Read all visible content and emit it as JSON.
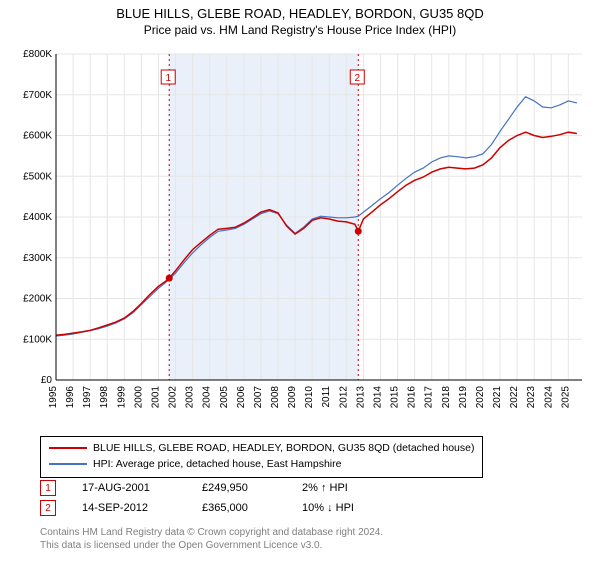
{
  "title": "BLUE HILLS, GLEBE ROAD, HEADLEY, BORDON, GU35 8QD",
  "subtitle": "Price paid vs. HM Land Registry's House Price Index (HPI)",
  "chart": {
    "type": "line",
    "background_color": "#ffffff",
    "plot_border_color": "#000000",
    "grid_color": "#e6e6e6",
    "highlight_band_color": "#eaf0fa",
    "ylim": [
      0,
      800000
    ],
    "ytick_step": 100000,
    "yticklabels": [
      "£0",
      "£100K",
      "£200K",
      "£300K",
      "£400K",
      "£500K",
      "£600K",
      "£700K",
      "£800K"
    ],
    "xlim": [
      1995,
      2025.8
    ],
    "xticks": [
      1995,
      1996,
      1997,
      1998,
      1999,
      2000,
      2001,
      2002,
      2003,
      2004,
      2005,
      2006,
      2007,
      2008,
      2009,
      2010,
      2011,
      2012,
      2013,
      2014,
      2015,
      2016,
      2017,
      2018,
      2019,
      2020,
      2021,
      2022,
      2023,
      2024,
      2025
    ],
    "highlight_band": [
      2001.6,
      2012.7
    ],
    "series": [
      {
        "name": "BLUE HILLS, GLEBE ROAD, HEADLEY, BORDON, GU35 8QD (detached house)",
        "color": "#cc0000",
        "line_width": 1.5,
        "points": [
          [
            1995,
            110000
          ],
          [
            1995.5,
            112000
          ],
          [
            1996,
            115000
          ],
          [
            1996.5,
            118000
          ],
          [
            1997,
            122000
          ],
          [
            1997.5,
            128000
          ],
          [
            1998,
            135000
          ],
          [
            1998.5,
            142000
          ],
          [
            1999,
            152000
          ],
          [
            1999.5,
            168000
          ],
          [
            2000,
            188000
          ],
          [
            2000.5,
            210000
          ],
          [
            2001,
            230000
          ],
          [
            2001.5,
            245000
          ],
          [
            2001.63,
            249950
          ],
          [
            2002,
            268000
          ],
          [
            2002.5,
            295000
          ],
          [
            2003,
            320000
          ],
          [
            2003.5,
            338000
          ],
          [
            2004,
            355000
          ],
          [
            2004.5,
            370000
          ],
          [
            2005,
            372000
          ],
          [
            2005.5,
            375000
          ],
          [
            2006,
            385000
          ],
          [
            2006.5,
            398000
          ],
          [
            2007,
            412000
          ],
          [
            2007.5,
            418000
          ],
          [
            2008,
            410000
          ],
          [
            2008.5,
            378000
          ],
          [
            2009,
            358000
          ],
          [
            2009.5,
            372000
          ],
          [
            2010,
            392000
          ],
          [
            2010.5,
            398000
          ],
          [
            2011,
            395000
          ],
          [
            2011.5,
            390000
          ],
          [
            2012,
            388000
          ],
          [
            2012.5,
            382000
          ],
          [
            2012.7,
            365000
          ],
          [
            2013,
            395000
          ],
          [
            2013.5,
            412000
          ],
          [
            2014,
            430000
          ],
          [
            2014.5,
            445000
          ],
          [
            2015,
            462000
          ],
          [
            2015.5,
            478000
          ],
          [
            2016,
            490000
          ],
          [
            2016.5,
            498000
          ],
          [
            2017,
            510000
          ],
          [
            2017.5,
            518000
          ],
          [
            2018,
            522000
          ],
          [
            2018.5,
            520000
          ],
          [
            2019,
            518000
          ],
          [
            2019.5,
            520000
          ],
          [
            2020,
            528000
          ],
          [
            2020.5,
            545000
          ],
          [
            2021,
            570000
          ],
          [
            2021.5,
            588000
          ],
          [
            2022,
            600000
          ],
          [
            2022.5,
            608000
          ],
          [
            2023,
            600000
          ],
          [
            2023.5,
            595000
          ],
          [
            2024,
            598000
          ],
          [
            2024.5,
            602000
          ],
          [
            2025,
            608000
          ],
          [
            2025.5,
            605000
          ]
        ]
      },
      {
        "name": "HPI: Average price, detached house, East Hampshire",
        "color": "#4472c4",
        "line_width": 1.2,
        "points": [
          [
            1995,
            108000
          ],
          [
            1995.5,
            110000
          ],
          [
            1996,
            113000
          ],
          [
            1996.5,
            117000
          ],
          [
            1997,
            121000
          ],
          [
            1997.5,
            126000
          ],
          [
            1998,
            132000
          ],
          [
            1998.5,
            140000
          ],
          [
            1999,
            150000
          ],
          [
            1999.5,
            165000
          ],
          [
            2000,
            185000
          ],
          [
            2000.5,
            205000
          ],
          [
            2001,
            225000
          ],
          [
            2001.5,
            242000
          ],
          [
            2002,
            262000
          ],
          [
            2002.5,
            288000
          ],
          [
            2003,
            312000
          ],
          [
            2003.5,
            332000
          ],
          [
            2004,
            350000
          ],
          [
            2004.5,
            365000
          ],
          [
            2005,
            368000
          ],
          [
            2005.5,
            372000
          ],
          [
            2006,
            382000
          ],
          [
            2006.5,
            395000
          ],
          [
            2007,
            408000
          ],
          [
            2007.5,
            415000
          ],
          [
            2008,
            408000
          ],
          [
            2008.5,
            380000
          ],
          [
            2009,
            360000
          ],
          [
            2009.5,
            375000
          ],
          [
            2010,
            395000
          ],
          [
            2010.5,
            402000
          ],
          [
            2011,
            400000
          ],
          [
            2011.5,
            398000
          ],
          [
            2012,
            398000
          ],
          [
            2012.5,
            400000
          ],
          [
            2012.7,
            402000
          ],
          [
            2013,
            412000
          ],
          [
            2013.5,
            428000
          ],
          [
            2014,
            445000
          ],
          [
            2014.5,
            460000
          ],
          [
            2015,
            478000
          ],
          [
            2015.5,
            495000
          ],
          [
            2016,
            510000
          ],
          [
            2016.5,
            520000
          ],
          [
            2017,
            535000
          ],
          [
            2017.5,
            545000
          ],
          [
            2018,
            550000
          ],
          [
            2018.5,
            548000
          ],
          [
            2019,
            545000
          ],
          [
            2019.5,
            548000
          ],
          [
            2020,
            555000
          ],
          [
            2020.5,
            578000
          ],
          [
            2021,
            610000
          ],
          [
            2021.5,
            640000
          ],
          [
            2022,
            670000
          ],
          [
            2022.5,
            695000
          ],
          [
            2023,
            685000
          ],
          [
            2023.5,
            670000
          ],
          [
            2024,
            668000
          ],
          [
            2024.5,
            675000
          ],
          [
            2025,
            685000
          ],
          [
            2025.5,
            680000
          ]
        ]
      }
    ],
    "markers": [
      {
        "label": "1",
        "x": 2001.63,
        "y": 249950,
        "color": "#cc0000"
      },
      {
        "label": "2",
        "x": 2012.7,
        "y": 365000,
        "color": "#cc0000"
      }
    ]
  },
  "legend": {
    "items": [
      {
        "color": "#cc0000",
        "label": "BLUE HILLS, GLEBE ROAD, HEADLEY, BORDON, GU35 8QD (detached house)"
      },
      {
        "color": "#4472c4",
        "label": "HPI: Average price, detached house, East Hampshire"
      }
    ]
  },
  "transactions": [
    {
      "num": "1",
      "date": "17-AUG-2001",
      "price": "£249,950",
      "diff": "2% ↑ HPI"
    },
    {
      "num": "2",
      "date": "14-SEP-2012",
      "price": "£365,000",
      "diff": "10% ↓ HPI"
    }
  ],
  "footer_line1": "Contains HM Land Registry data © Crown copyright and database right 2024.",
  "footer_line2": "This data is licensed under the Open Government Licence v3.0."
}
